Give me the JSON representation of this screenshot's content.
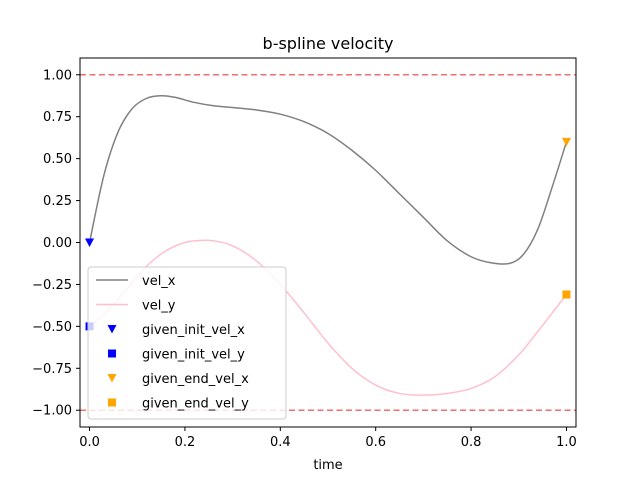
{
  "chart_data": {
    "type": "line",
    "title": "b-spline velocity",
    "xlabel": "time",
    "ylabel": "",
    "xlim": [
      -0.02,
      1.02
    ],
    "ylim": [
      -1.1,
      1.1
    ],
    "x_ticks": [
      0.0,
      0.2,
      0.4,
      0.6,
      0.8,
      1.0
    ],
    "x_tick_labels": [
      "0.0",
      "0.2",
      "0.4",
      "0.6",
      "0.8",
      "1.0"
    ],
    "y_ticks": [
      1.0,
      0.75,
      0.5,
      0.25,
      0.0,
      -0.25,
      -0.5,
      -0.75,
      -1.0
    ],
    "y_tick_labels": [
      "1.00",
      "0.75",
      "0.50",
      "0.25",
      "0.00",
      "−0.25",
      "−0.50",
      "−0.75",
      "−1.00"
    ],
    "limit_lines": [
      {
        "y": 1.0,
        "color": "#ef6f6f",
        "style": "dashed"
      },
      {
        "y": -1.0,
        "color": "#ef6f6f",
        "style": "dashed"
      }
    ],
    "series": [
      {
        "name": "vel_x",
        "color": "#808080",
        "x": [
          0.0,
          0.03,
          0.06,
          0.09,
          0.12,
          0.15,
          0.18,
          0.22,
          0.26,
          0.3,
          0.35,
          0.4,
          0.45,
          0.5,
          0.55,
          0.6,
          0.65,
          0.7,
          0.75,
          0.8,
          0.84,
          0.88,
          0.91,
          0.94,
          0.97,
          1.0
        ],
        "y": [
          0.0,
          0.4,
          0.66,
          0.8,
          0.86,
          0.875,
          0.865,
          0.835,
          0.815,
          0.805,
          0.79,
          0.765,
          0.72,
          0.65,
          0.55,
          0.43,
          0.29,
          0.15,
          0.01,
          -0.085,
          -0.12,
          -0.125,
          -0.07,
          0.08,
          0.33,
          0.6
        ]
      },
      {
        "name": "vel_y",
        "color": "#ffc0cb",
        "x": [
          0.0,
          0.04,
          0.08,
          0.12,
          0.16,
          0.2,
          0.23,
          0.26,
          0.3,
          0.35,
          0.4,
          0.45,
          0.5,
          0.55,
          0.6,
          0.65,
          0.7,
          0.75,
          0.8,
          0.85,
          0.9,
          0.94,
          0.97,
          1.0
        ],
        "y": [
          -0.5,
          -0.4,
          -0.27,
          -0.14,
          -0.05,
          0.0,
          0.012,
          0.01,
          -0.02,
          -0.11,
          -0.25,
          -0.42,
          -0.6,
          -0.75,
          -0.85,
          -0.9,
          -0.91,
          -0.9,
          -0.87,
          -0.8,
          -0.67,
          -0.53,
          -0.42,
          -0.31
        ]
      }
    ],
    "markers": [
      {
        "name": "given_init_vel_x",
        "x": 0.0,
        "y": 0.0,
        "marker": "triangle-down",
        "color": "#0000ff"
      },
      {
        "name": "given_init_vel_y",
        "x": 0.0,
        "y": -0.5,
        "marker": "square",
        "color": "#0000ff"
      },
      {
        "name": "given_end_vel_x",
        "x": 1.0,
        "y": 0.6,
        "marker": "triangle-down",
        "color": "#ffa500"
      },
      {
        "name": "given_end_vel_y",
        "x": 1.0,
        "y": -0.31,
        "marker": "square",
        "color": "#ffa500"
      }
    ],
    "legend": {
      "placement": "lower-left",
      "entries": [
        {
          "label": "vel_x",
          "kind": "line",
          "color": "#808080"
        },
        {
          "label": "vel_y",
          "kind": "line",
          "color": "#ffc0cb"
        },
        {
          "label": "given_init_vel_x",
          "kind": "triangle-down",
          "color": "#0000ff"
        },
        {
          "label": "given_init_vel_y",
          "kind": "square",
          "color": "#0000ff"
        },
        {
          "label": "given_end_vel_x",
          "kind": "triangle-down",
          "color": "#ffa500"
        },
        {
          "label": "given_end_vel_y",
          "kind": "square",
          "color": "#ffa500"
        }
      ]
    }
  }
}
